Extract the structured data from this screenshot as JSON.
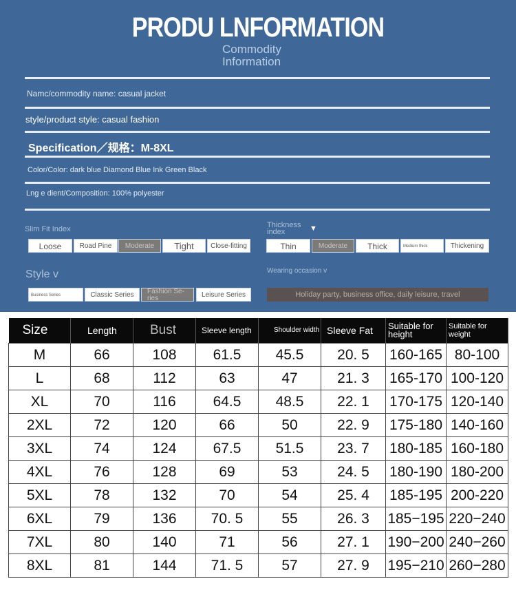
{
  "header": {
    "title": "PRODU LNFORMATION",
    "subtitle_line1": "Commodity",
    "subtitle_line2": "Information"
  },
  "info": {
    "name": "Namc/commodity name: casual jacket",
    "style": "style/product style: casual fashion",
    "spec": "Specification／规格：M-8XL",
    "color": "Color/Color: dark blue Diamond Blue Ink Green Black",
    "composition": "Lng e dient/Composition: 100% polyester"
  },
  "slim_fit": {
    "label": "Slim Fit Index",
    "options": [
      "Loose",
      "Road Pine",
      "Moderate",
      "Tight",
      "Close-fitting"
    ],
    "selected": "Moderate"
  },
  "thickness": {
    "label": "Thickness index",
    "marker": "▼",
    "options": [
      "Thin",
      "Moderate",
      "Thick",
      "Medium thick",
      "Thickening"
    ],
    "selected": "Moderate"
  },
  "style": {
    "label": "Style v",
    "options": [
      "Business Series",
      "Classic Series",
      "Fashion Se-ries",
      "Leisure Series"
    ],
    "selected": "Fashion Se-ries"
  },
  "occasion": {
    "label": "Wearing occasion v",
    "value": "Holiday party, business office, daily leisure, travel"
  },
  "table": {
    "headers": [
      "Size",
      "Length",
      "Bust",
      "Sleeve length",
      "Shoulder width",
      "Sleeve Fat",
      "Suitable for height",
      "Suitable for weight"
    ],
    "rows": [
      [
        "M",
        "66",
        "108",
        "61.5",
        "45.5",
        "20. 5",
        "160-165",
        "80-100"
      ],
      [
        "L",
        "68",
        "112",
        "63",
        "47",
        "21. 3",
        "165-170",
        "100-120"
      ],
      [
        "XL",
        "70",
        "116",
        "64.5",
        "48.5",
        "22. 1",
        "170-175",
        "120-140"
      ],
      [
        "2XL",
        "72",
        "120",
        "66",
        "50",
        "22. 9",
        "175-180",
        "140-160"
      ],
      [
        "3XL",
        "74",
        "124",
        "67.5",
        "51.5",
        "23. 7",
        "180-185",
        "160-180"
      ],
      [
        "4XL",
        "76",
        "128",
        "69",
        "53",
        "24. 5",
        "180-190",
        "180-200"
      ],
      [
        "5XL",
        "78",
        "132",
        "70",
        "54",
        "25. 4",
        "185-195",
        "200-220"
      ],
      [
        "6XL",
        "79",
        "136",
        "70. 5",
        "55",
        "26. 3",
        "185−195",
        "220−240"
      ],
      [
        "7XL",
        "80",
        "140",
        "71",
        "56",
        "27. 1",
        "190−200",
        "240−260"
      ],
      [
        "8XL",
        "81",
        "144",
        "71. 5",
        "57",
        "27. 9",
        "195−210",
        "260−280"
      ]
    ]
  }
}
